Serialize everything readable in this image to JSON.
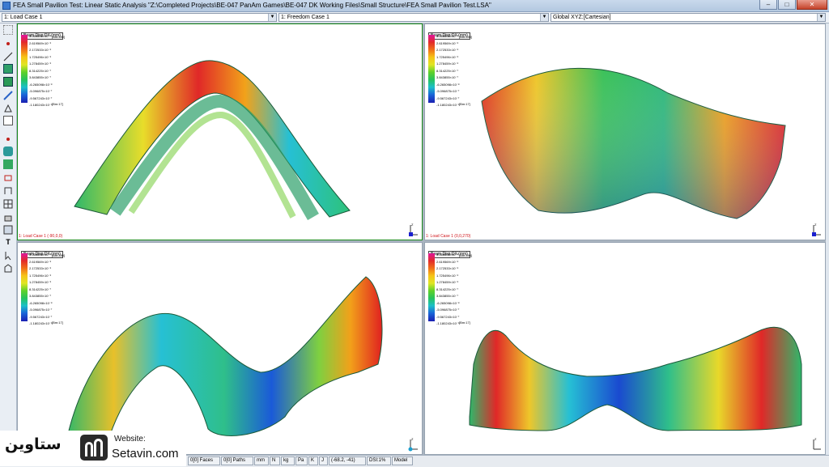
{
  "window": {
    "title": "FEA Small Pavilion Test: Linear Static Analysis \"Z:\\Completed Projects\\BE-047 PanAm Games\\BE-047 DK Working Files\\Small Structure\\FEA Small Pavilion Test.LSA\"",
    "minimize": "–",
    "maximize": "□",
    "close": "✕"
  },
  "selectors": {
    "load_case": "1: Load Case 1",
    "freedom_case": "1: Freedom Case 1",
    "coord_system": "Global XYZ:[Cartesian]"
  },
  "legend": {
    "title": "Beam Disp:DX  (mm)",
    "max_label": "[Bm:390]",
    "min_label": "[Bm:17]",
    "values": [
      "3.066606×10⁻⁶",
      "2.619569×10⁻⁶",
      "2.172533×10⁻⁶",
      "1.725496×10⁻⁶",
      "1.278459×10⁻⁶",
      "8.314225×10⁻⁷",
      "3.843855×10⁻⁷",
      "-6.265098×10⁻⁸",
      "-5.096875×10⁻⁷",
      "-9.567243×10⁻⁷",
      "-1.180243×10⁻⁶"
    ]
  },
  "viewports": [
    {
      "id": "tl",
      "caption": ""
    },
    {
      "id": "tr",
      "caption": ""
    },
    {
      "id": "bl",
      "caption": "1: Load Case 1 (-90,0,0)"
    },
    {
      "id": "br",
      "caption": "1: Load Case 1 (0,0,270)"
    }
  ],
  "colors": {
    "active_viewport_border": "#1a8a1a",
    "caption_red": "#d0141a"
  },
  "statusbar": [
    "0[0] Faces",
    "0[0] Paths",
    "mm",
    "N",
    "kg",
    "Pa",
    "K",
    "J",
    "(-68.2, -41)",
    "DSI:1%",
    "Model"
  ],
  "watermark": {
    "persian_text": "ستاوین",
    "website_label": "Website:",
    "website_url": "Setavin.com"
  },
  "toolbar_icons": [
    "grid-icon",
    "node-icon",
    "line-icon",
    "plate-icon",
    "brick-icon",
    "link-icon",
    "attribute-icon",
    "load-icon",
    "beam-icon",
    "dot-icon",
    "cylinder-icon",
    "ruler-icon",
    "section-icon",
    "frame-icon",
    "mesh-icon",
    "build-icon",
    "stack-icon",
    "text-icon",
    "cursor-icon",
    "extrude-icon",
    "view3d-icon"
  ]
}
